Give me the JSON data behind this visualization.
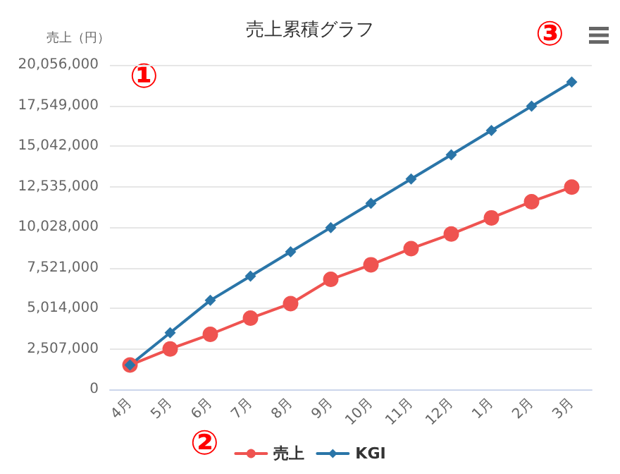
{
  "chart_data": {
    "type": "line",
    "title": "売上累積グラフ",
    "ylabel": "売上（円）",
    "categories": [
      "4月",
      "5月",
      "6月",
      "7月",
      "8月",
      "9月",
      "10月",
      "11月",
      "12月",
      "1月",
      "2月",
      "3月"
    ],
    "series": [
      {
        "name": "売上",
        "color": "#ef5350",
        "marker": "circle",
        "values": [
          1500000,
          2500000,
          3400000,
          4400000,
          5300000,
          6800000,
          7700000,
          8700000,
          9600000,
          10600000,
          11600000,
          12500000
        ]
      },
      {
        "name": "KGI",
        "color": "#2a75a8",
        "marker": "diamond",
        "values": [
          1500000,
          3500000,
          5500000,
          7000000,
          8500000,
          10000000,
          11500000,
          13000000,
          14500000,
          16000000,
          17500000,
          19000000
        ]
      }
    ],
    "ylim": [
      0,
      20056000
    ],
    "yticks": [
      0,
      {
        "value": 2507000,
        "label": "2,507,000"
      },
      {
        "value": 5014000,
        "label": "5,014,000"
      },
      {
        "value": 7521000,
        "label": "7,521,000"
      },
      {
        "value": 10028000,
        "label": "10,028,000"
      },
      {
        "value": 12535000,
        "label": "12,535,000"
      },
      {
        "value": 15042000,
        "label": "15,042,000"
      },
      {
        "value": 17549000,
        "label": "17,549,000"
      },
      {
        "value": 20056000,
        "label": "20,056,000"
      }
    ],
    "grid": "y",
    "legend": "bottom",
    "line_style": "solid",
    "annotations": [
      "①",
      "②",
      "③"
    ]
  }
}
